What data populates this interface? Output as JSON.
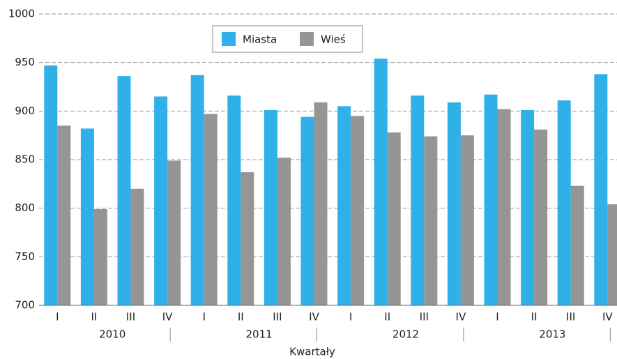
{
  "chart_data": {
    "type": "bar",
    "categories": [
      "I",
      "II",
      "III",
      "IV",
      "I",
      "II",
      "III",
      "IV",
      "I",
      "II",
      "III",
      "IV",
      "I",
      "II",
      "III",
      "IV"
    ],
    "groups": [
      "2010",
      "2011",
      "2012",
      "2013"
    ],
    "x_label": "Kwartały",
    "series": [
      {
        "name": "Miasta",
        "color": "#2fb0e8",
        "values": [
          947,
          882,
          936,
          915,
          937,
          916,
          901,
          894,
          905,
          954,
          916,
          909,
          917,
          901,
          911,
          938
        ]
      },
      {
        "name": "Wieś",
        "color": "#959595",
        "values": [
          885,
          799,
          820,
          849,
          897,
          837,
          852,
          909,
          895,
          878,
          874,
          875,
          902,
          881,
          823,
          804
        ]
      }
    ],
    "ylim": [
      700,
      1000
    ],
    "yticks": [
      700,
      750,
      800,
      850,
      900,
      950,
      1000
    ],
    "grid": true
  }
}
